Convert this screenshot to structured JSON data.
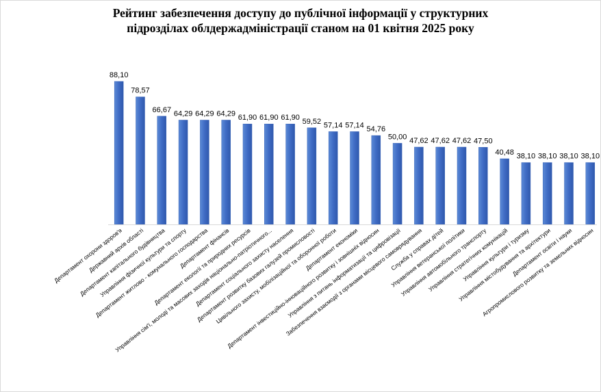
{
  "chart_data": {
    "type": "bar",
    "title_line1": "Рейтинг забезпечення доступу до публічної інформації у структурних",
    "title_line2": "підрозділах облдержадміністрації станом на 01 квітня 2025 року",
    "categories": [
      "Департамент охорони здоров'я",
      "Державний архів області",
      "Департамент капітального будівництва",
      "Управління фізичної культури та спорту",
      "Департамент житлово - комунального господарства",
      "Департамент фінансів",
      "Департамент екології та природних ресурсів",
      "Управління сім'ї, молоді та масових заходів національно-патріотичного...",
      "Департамент соціального захисту населення",
      "Департамент розвитку базових галузей промисловості",
      "Цивільного захисту, мобілізаційної та оборонної роботи",
      "Департамент економіки",
      "Департамент інвестиційно-інноваційного розвитку і зовнішніх відносин",
      "Управління з питань інформатизації та цифровізації",
      "Забезпечення взаємодії з органами місцевого самоврядування",
      "Служба у справах дітей",
      "Управління ветеранської політики",
      "Управління автомобільного транспорту",
      "Управління стратегічних комунікацій",
      "Управління культури і туризму",
      "Управління містобудування та архітектури",
      "Департамент освіти і науки",
      "Агропромислового розвитку та земельних відносин"
    ],
    "values": [
      88.1,
      78.57,
      66.67,
      64.29,
      64.29,
      64.29,
      61.9,
      61.9,
      61.9,
      59.52,
      57.14,
      57.14,
      54.76,
      50.0,
      47.62,
      47.62,
      47.62,
      47.5,
      40.48,
      38.1,
      38.1,
      38.1,
      38.1
    ],
    "value_labels": [
      "88,10",
      "78,57",
      "66,67",
      "64,29",
      "64,29",
      "64,29",
      "61,90",
      "61,90",
      "61,90",
      "59,52",
      "57,14",
      "57,14",
      "54,76",
      "50,00",
      "47,62",
      "47,62",
      "47,62",
      "47,50",
      "40,48",
      "38,10",
      "38,10",
      "38,10",
      "38,10"
    ],
    "ylim": [
      0,
      90
    ],
    "grid": false,
    "legend": "none",
    "bar_color": "#4472c4"
  }
}
